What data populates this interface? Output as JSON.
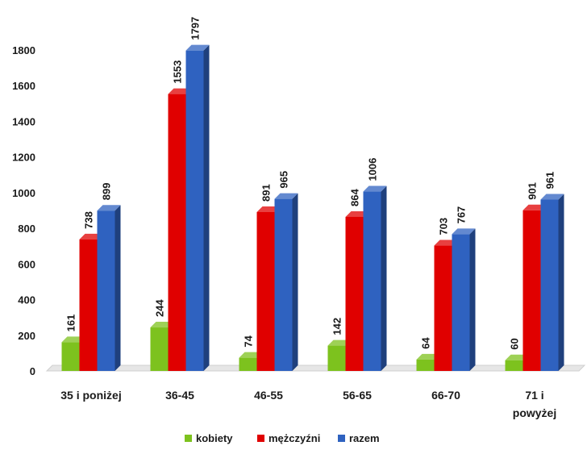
{
  "chart_data": {
    "type": "bar",
    "categories": [
      [
        "35 i poniżej"
      ],
      [
        "36-45"
      ],
      [
        "46-55"
      ],
      [
        "56-65"
      ],
      [
        "66-70"
      ],
      [
        "71 i",
        "powyżej"
      ]
    ],
    "series": [
      {
        "name": "kobiety",
        "color": "#7dc21e",
        "values": [
          161,
          244,
          74,
          142,
          64,
          60
        ]
      },
      {
        "name": "mężczyźni",
        "color": "#e00000",
        "values": [
          738,
          1553,
          891,
          864,
          703,
          901
        ]
      },
      {
        "name": "razem",
        "color": "#2f62c0",
        "values": [
          899,
          1797,
          965,
          1006,
          767,
          961
        ]
      }
    ],
    "ylim": [
      0,
      1800
    ],
    "yticks": [
      0,
      200,
      400,
      600,
      800,
      1000,
      1200,
      1400,
      1600,
      1800
    ],
    "grid": false,
    "legend_position": "bottom",
    "data_labels": true
  }
}
